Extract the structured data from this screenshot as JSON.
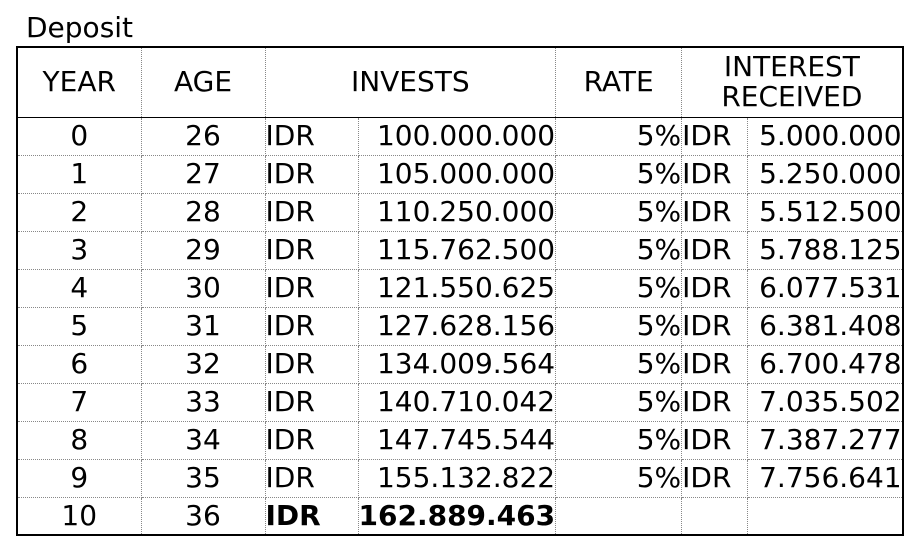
{
  "title": "Deposit",
  "headers": {
    "year": "YEAR",
    "age": "AGE",
    "invests": "INVESTS",
    "rate": "RATE",
    "interest_line1": "INTEREST",
    "interest_line2": "RECEIVED"
  },
  "rows": [
    {
      "year": "0",
      "age": "26",
      "currency": "IDR",
      "invest": "100.000.000",
      "rate": "5%",
      "interest_currency": "IDR",
      "interest": "5.000.000"
    },
    {
      "year": "1",
      "age": "27",
      "currency": "IDR",
      "invest": "105.000.000",
      "rate": "5%",
      "interest_currency": "IDR",
      "interest": "5.250.000"
    },
    {
      "year": "2",
      "age": "28",
      "currency": "IDR",
      "invest": "110.250.000",
      "rate": "5%",
      "interest_currency": "IDR",
      "interest": "5.512.500"
    },
    {
      "year": "3",
      "age": "29",
      "currency": "IDR",
      "invest": "115.762.500",
      "rate": "5%",
      "interest_currency": "IDR",
      "interest": "5.788.125"
    },
    {
      "year": "4",
      "age": "30",
      "currency": "IDR",
      "invest": "121.550.625",
      "rate": "5%",
      "interest_currency": "IDR",
      "interest": "6.077.531"
    },
    {
      "year": "5",
      "age": "31",
      "currency": "IDR",
      "invest": "127.628.156",
      "rate": "5%",
      "interest_currency": "IDR",
      "interest": "6.381.408"
    },
    {
      "year": "6",
      "age": "32",
      "currency": "IDR",
      "invest": "134.009.564",
      "rate": "5%",
      "interest_currency": "IDR",
      "interest": "6.700.478"
    },
    {
      "year": "7",
      "age": "33",
      "currency": "IDR",
      "invest": "140.710.042",
      "rate": "5%",
      "interest_currency": "IDR",
      "interest": "7.035.502"
    },
    {
      "year": "8",
      "age": "34",
      "currency": "IDR",
      "invest": "147.745.544",
      "rate": "5%",
      "interest_currency": "IDR",
      "interest": "7.387.277"
    },
    {
      "year": "9",
      "age": "35",
      "currency": "IDR",
      "invest": "155.132.822",
      "rate": "5%",
      "interest_currency": "IDR",
      "interest": "7.756.641"
    }
  ],
  "final_row": {
    "year": "10",
    "age": "36",
    "currency": "IDR",
    "invest": "162.889.463"
  }
}
